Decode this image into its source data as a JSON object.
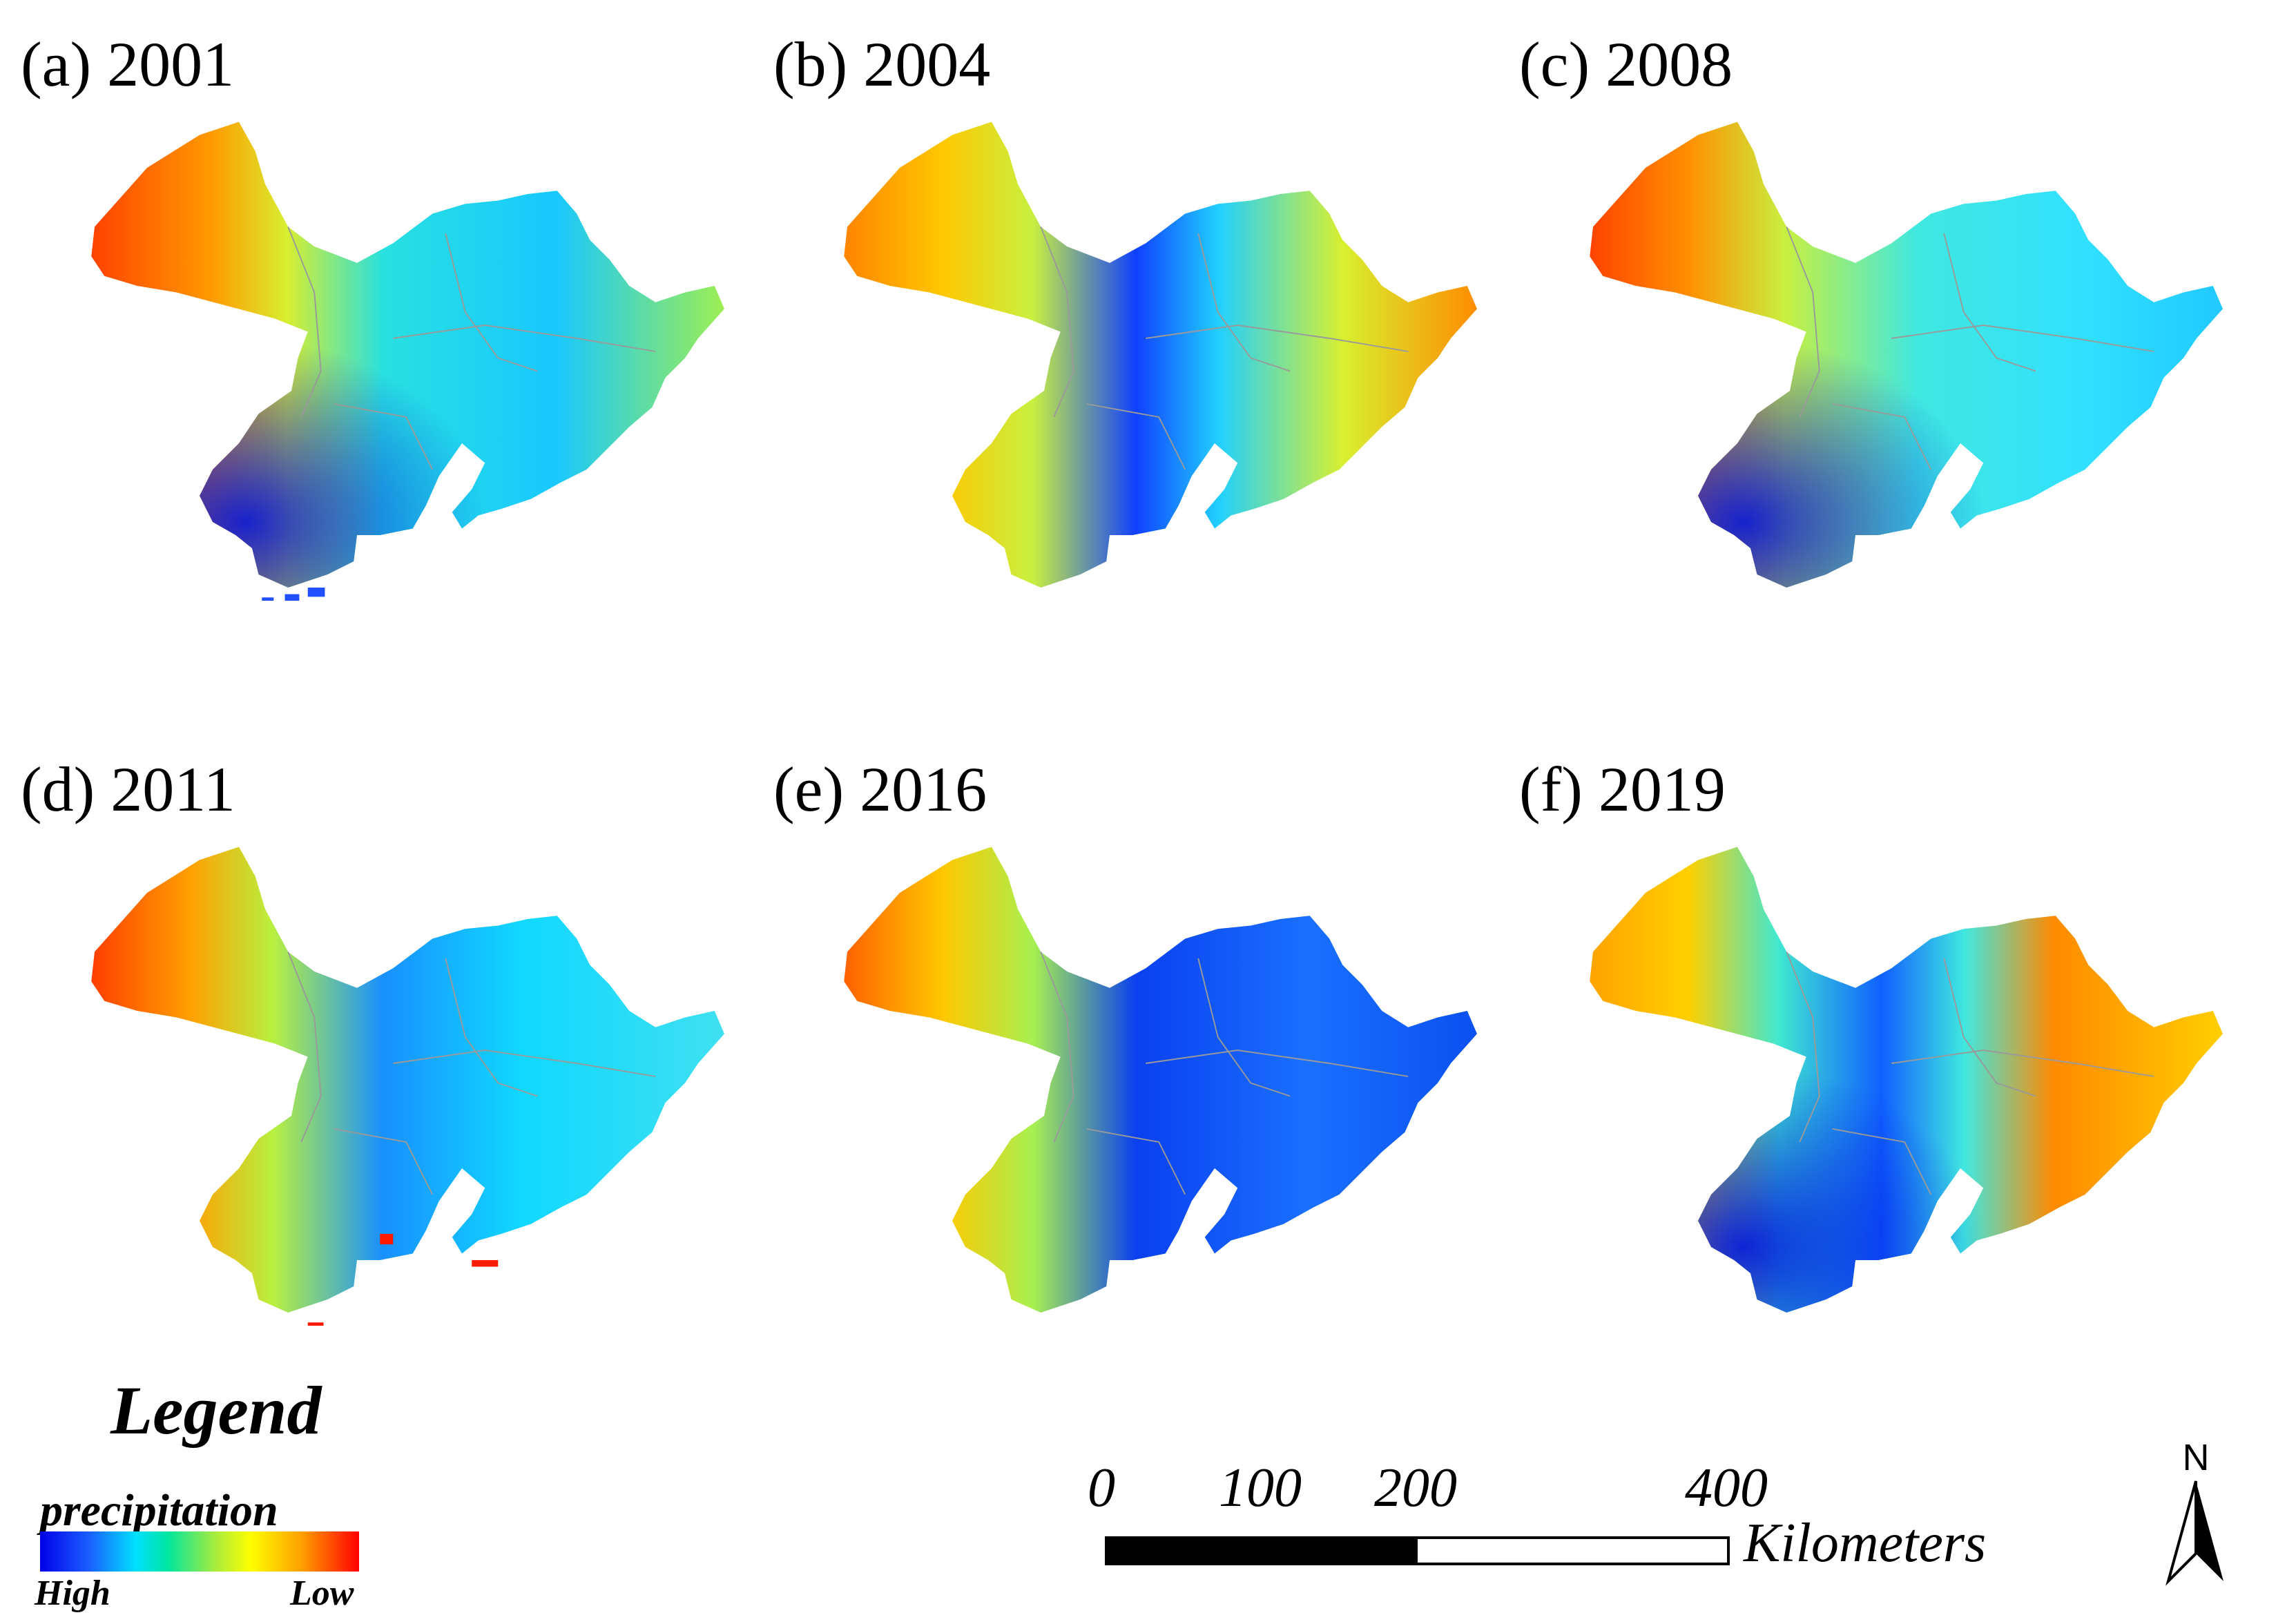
{
  "panels": [
    {
      "label": "(a) 2001"
    },
    {
      "label": "(b) 2004"
    },
    {
      "label": "(c) 2008"
    },
    {
      "label": "(d) 2011"
    },
    {
      "label": "(e) 2016"
    },
    {
      "label": "(f) 2019"
    }
  ],
  "legend": {
    "title": "Legend",
    "variable": "precipitation",
    "high_label": "High",
    "low_label": "Low",
    "colors": [
      "#0000e8",
      "#1a5cff",
      "#00e0ff",
      "#00e6a0",
      "#a8ec3c",
      "#ffff00",
      "#ffa000",
      "#ff0000"
    ]
  },
  "scale_bar": {
    "ticks": [
      "0",
      "100",
      "200",
      "400"
    ],
    "unit": "Kilometers"
  },
  "north_arrow": {
    "label": "N"
  }
}
